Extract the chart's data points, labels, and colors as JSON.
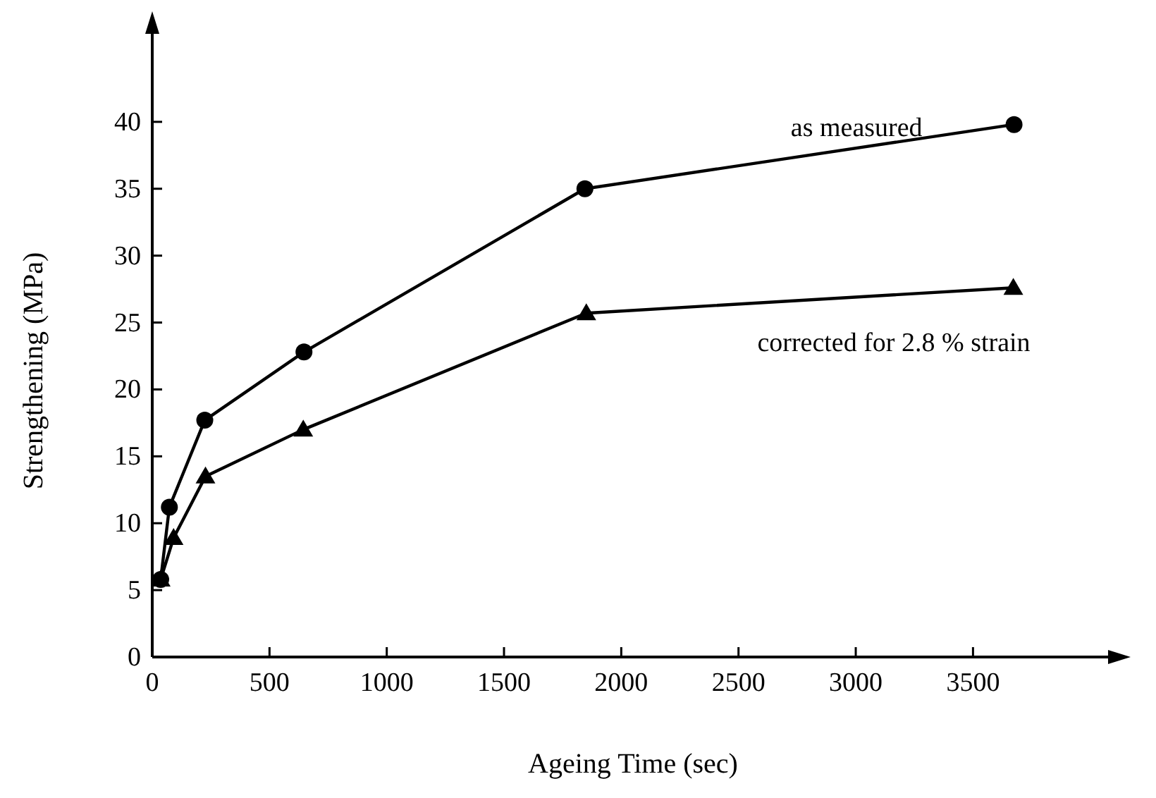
{
  "chart_data": {
    "type": "line",
    "xlabel": "Ageing Time (sec)",
    "ylabel": "Strengthening (MPa)",
    "xlim": [
      0,
      4100
    ],
    "xticks": [
      0,
      500,
      1000,
      1500,
      2000,
      2500,
      3000,
      3500
    ],
    "ylim": [
      0,
      47
    ],
    "yticks": [
      0,
      5,
      10,
      15,
      20,
      25,
      30,
      35,
      40
    ],
    "grid": false,
    "line_style": "solid",
    "series": [
      {
        "name": "as measured",
        "color": "#000000",
        "marker": "circle",
        "x": [
          36,
          73,
          224,
          647,
          1845,
          3675
        ],
        "values": [
          5.8,
          11.2,
          17.7,
          22.8,
          35.0,
          39.8
        ]
      },
      {
        "name": "corrected for 2.8 % strain",
        "color": "#000000",
        "marker": "triangle",
        "x": [
          36,
          91,
          227,
          644,
          1851,
          3672
        ],
        "values": [
          5.8,
          8.9,
          13.5,
          17.0,
          25.7,
          27.6
        ]
      }
    ]
  }
}
